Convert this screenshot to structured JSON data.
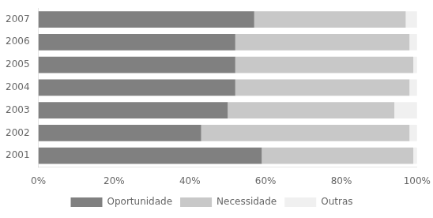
{
  "chart_data": {
    "type": "bar",
    "orientation": "horizontal",
    "stacked": true,
    "categories": [
      "2007",
      "2006",
      "2005",
      "2004",
      "2003",
      "2002",
      "2001"
    ],
    "series": [
      {
        "name": "Oportunidade",
        "color": "#808080",
        "values": [
          57,
          52,
          52,
          52,
          50,
          43,
          59
        ]
      },
      {
        "name": "Necessidade",
        "color": "#c8c8c8",
        "values": [
          40,
          46,
          47,
          46,
          44,
          55,
          40
        ]
      },
      {
        "name": "Outras",
        "color": "#f0f0f0",
        "values": [
          3,
          2,
          1,
          2,
          6,
          2,
          1
        ]
      }
    ],
    "xlim": [
      0,
      100
    ],
    "xticks": [
      {
        "value": 0,
        "label": "0%"
      },
      {
        "value": 20,
        "label": "20%"
      },
      {
        "value": 40,
        "label": "40%"
      },
      {
        "value": 60,
        "label": "60%"
      },
      {
        "value": 80,
        "label": "80%"
      },
      {
        "value": 100,
        "label": "100%"
      }
    ],
    "grid": false,
    "legend": "bottom"
  }
}
